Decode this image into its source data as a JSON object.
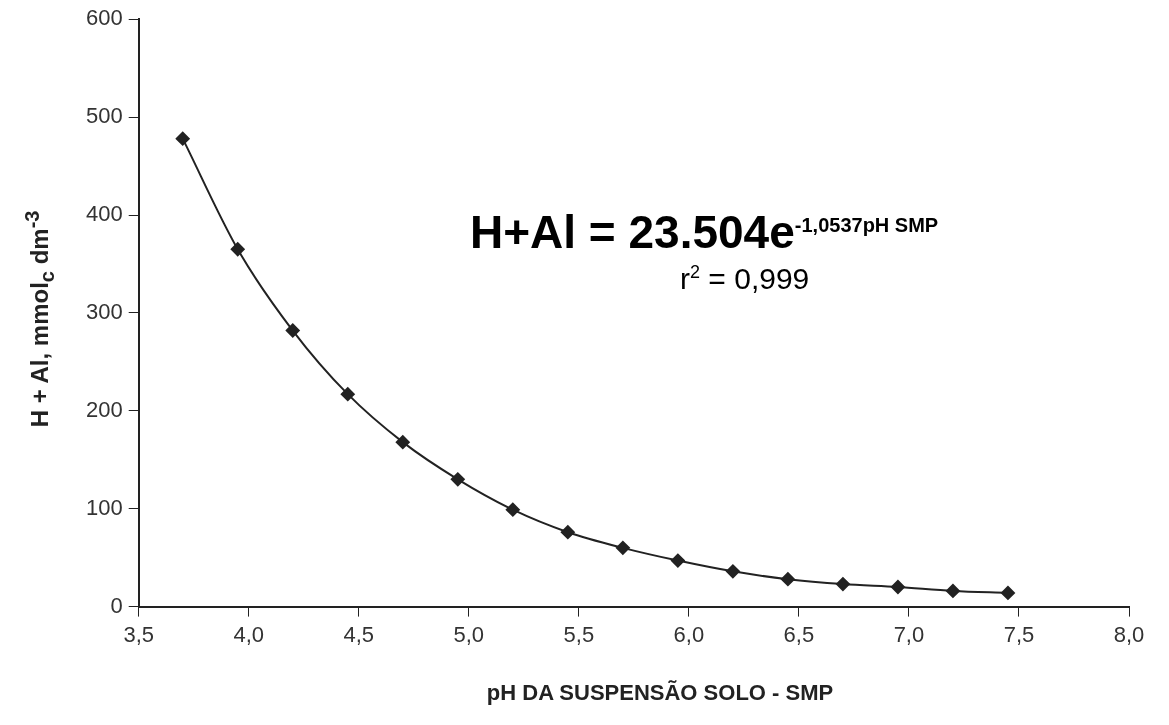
{
  "chart_data": {
    "type": "line",
    "xlabel": "pH DA SUSPENSÃO SOLO - SMP",
    "ylabel": "H + Al, mmol$_{c}$ dm$^{-3}$",
    "x": [
      3.7,
      3.95,
      4.2,
      4.45,
      4.7,
      4.95,
      5.2,
      5.45,
      5.7,
      5.95,
      6.2,
      6.45,
      6.7,
      6.95,
      7.2,
      7.45
    ],
    "series": [
      {
        "color": "#222222",
        "values": [
          478,
          365,
          282,
          217,
          168,
          130,
          99,
          76,
          60,
          47,
          36,
          28,
          23,
          20,
          16,
          14
        ]
      }
    ],
    "xlim": [
      3.5,
      8.0
    ],
    "xticks": [
      {
        "value": 3.5,
        "label": "3,5"
      },
      {
        "value": 4.0,
        "label": "4,0"
      },
      {
        "value": 4.5,
        "label": "4,5"
      },
      {
        "value": 5.0,
        "label": "5,0"
      },
      {
        "value": 5.5,
        "label": "5,5"
      },
      {
        "value": 6.0,
        "label": "6,0"
      },
      {
        "value": 6.5,
        "label": "6,5"
      },
      {
        "value": 7.0,
        "label": "7,0"
      },
      {
        "value": 7.5,
        "label": "7,5"
      },
      {
        "value": 8.0,
        "label": "8,0"
      }
    ],
    "ylim": [
      0,
      600
    ],
    "yticks": [
      0,
      100,
      200,
      300,
      400,
      500,
      600
    ],
    "annotations": [
      "H+Al = 23.504e$^{-1,0537pH SMP}$",
      "r$^{2}$ = 0,999"
    ],
    "grid": false,
    "legend": false,
    "marker": "diamond",
    "line_style": "solid"
  }
}
